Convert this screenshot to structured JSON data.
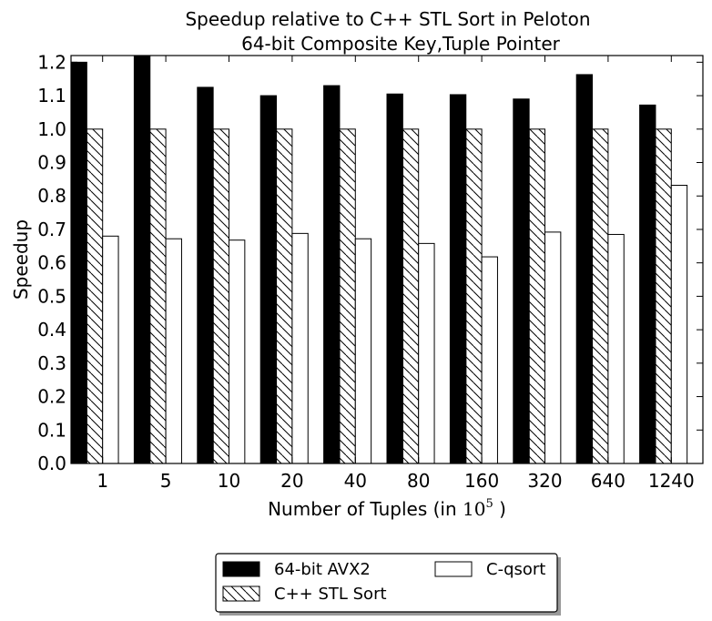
{
  "chart_data": {
    "type": "bar",
    "title": "Speedup relative to C++ STL Sort in Peloton",
    "subtitle": "64-bit Composite Key,Tuple Pointer",
    "xlabel": "Number of Tuples (in ",
    "xlabel_base": "10",
    "xlabel_exp": "5",
    "xlabel_end": " )",
    "ylabel": "Speedup",
    "ylim": [
      0,
      1.22
    ],
    "yticks": [
      "0.0",
      "0.1",
      "0.2",
      "0.3",
      "0.4",
      "0.5",
      "0.6",
      "0.7",
      "0.8",
      "0.9",
      "1.0",
      "1.1",
      "1.2"
    ],
    "categories": [
      "1",
      "5",
      "10",
      "20",
      "40",
      "80",
      "160",
      "320",
      "640",
      "1240"
    ],
    "series": [
      {
        "name": "64-bit AVX2",
        "style": "solid",
        "color": "#000000",
        "values": [
          1.2,
          1.22,
          1.125,
          1.1,
          1.13,
          1.105,
          1.103,
          1.09,
          1.163,
          1.072
        ]
      },
      {
        "name": "C++ STL Sort",
        "style": "hatch",
        "color": "#ffffff",
        "values": [
          1.0,
          1.0,
          1.0,
          1.0,
          1.0,
          1.0,
          1.0,
          1.0,
          1.0,
          1.0
        ]
      },
      {
        "name": "C-qsort",
        "style": "empty",
        "color": "#ffffff",
        "values": [
          0.68,
          0.672,
          0.668,
          0.688,
          0.672,
          0.658,
          0.618,
          0.692,
          0.685,
          0.832
        ]
      }
    ],
    "legend": "below"
  }
}
